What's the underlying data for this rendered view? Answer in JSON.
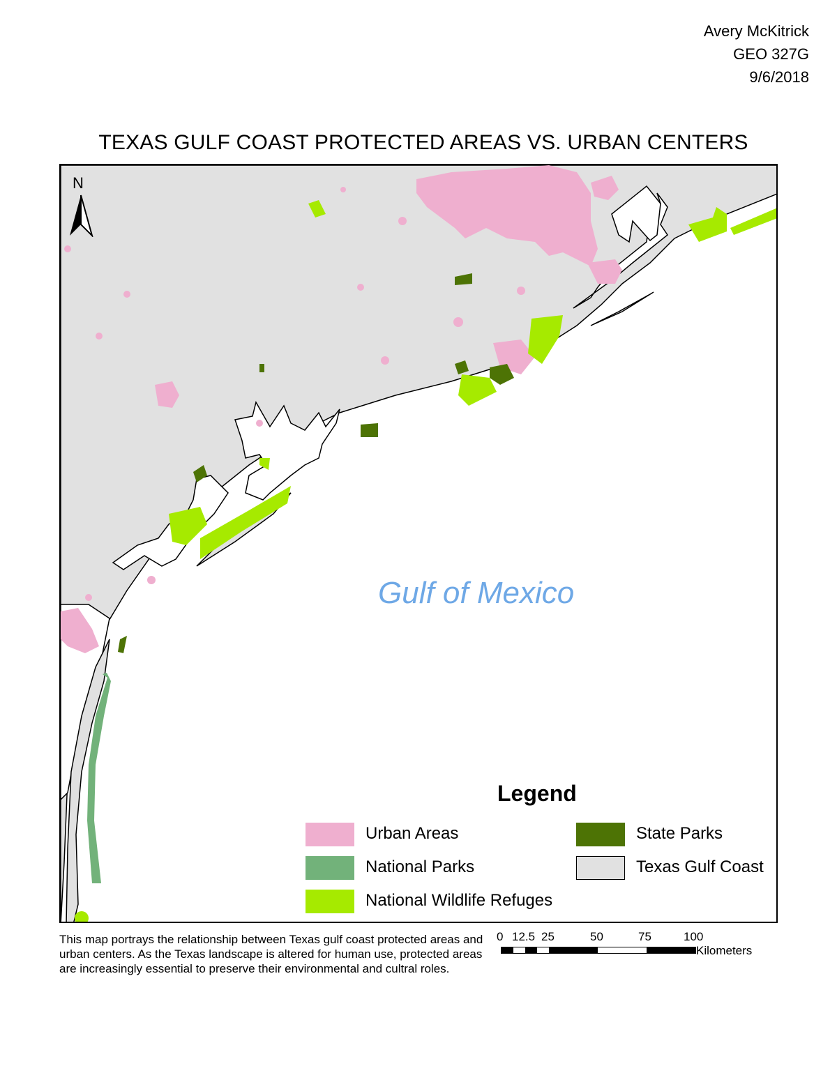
{
  "author": {
    "name": "Avery McKitrick",
    "course": "GEO 327G",
    "date": "9/6/2018"
  },
  "title": "TEXAS GULF COAST PROTECTED AREAS VS. URBAN CENTERS",
  "north_arrow": {
    "label": "N"
  },
  "water_label": "Gulf of Mexico",
  "colors": {
    "urban": "#efafcf",
    "national_parks": "#72b27a",
    "wildlife_refuges": "#a6ea00",
    "state_parks": "#4d7305",
    "land": "#e1e1e1",
    "water_label": "#6ea8e6"
  },
  "legend": {
    "title": "Legend",
    "items": [
      {
        "label": "Urban Areas",
        "color": "#efafcf"
      },
      {
        "label": "National Parks",
        "color": "#72b27a"
      },
      {
        "label": "National Wildlife Refuges",
        "color": "#a6ea00"
      },
      {
        "label": "State Parks",
        "color": "#4d7305"
      },
      {
        "label": "Texas Gulf Coast",
        "color": "#e1e1e1"
      }
    ]
  },
  "caption": "This map portrays the relationship between Texas gulf coast protected areas and urban centers. As the Texas landscape is altered for human use, protected areas are increasingly essential to preserve their environmental and cultral roles.",
  "scale_bar": {
    "ticks": [
      "0",
      "12.5",
      "25",
      "50",
      "75",
      "100"
    ],
    "unit": "Kilometers"
  }
}
